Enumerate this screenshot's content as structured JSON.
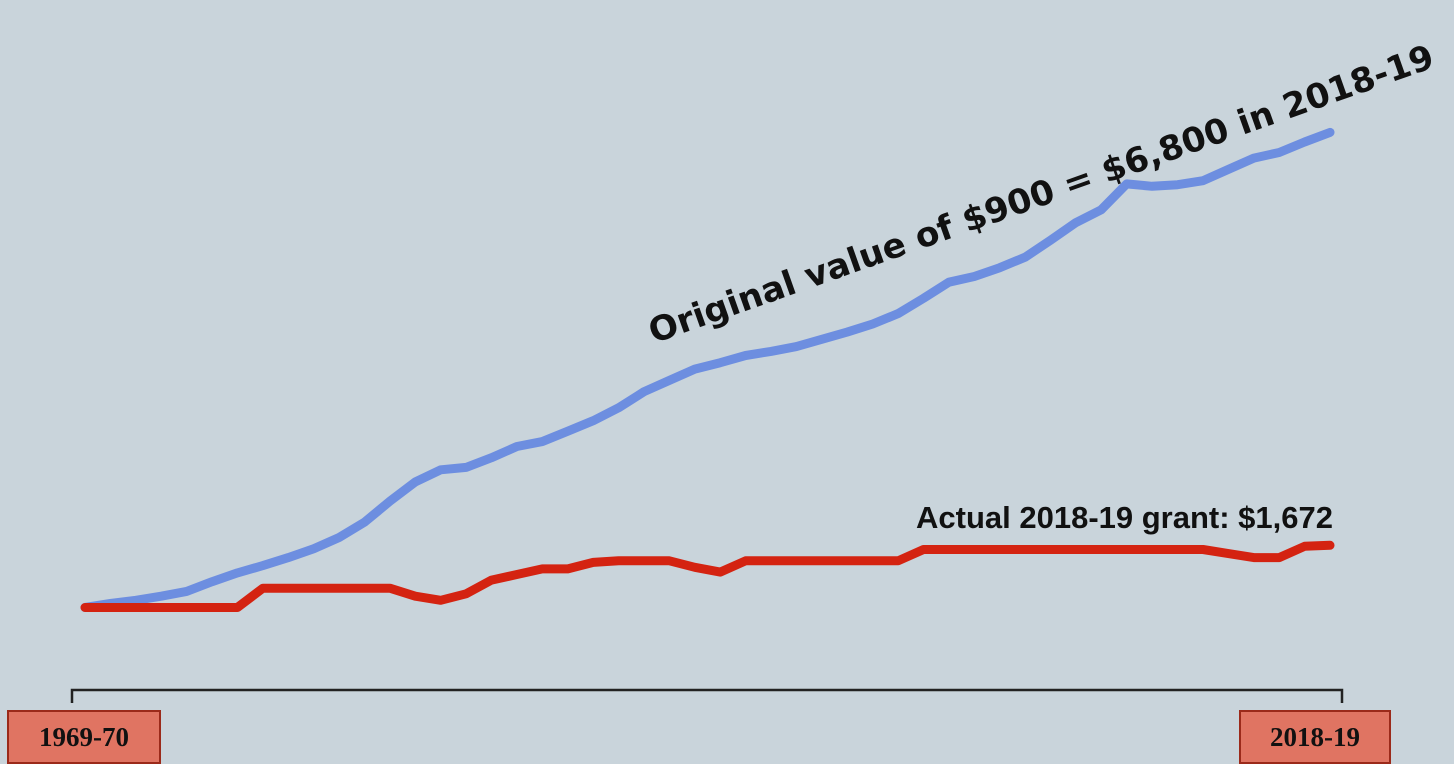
{
  "chart_data": {
    "type": "line",
    "categories": [
      "1969-70",
      null,
      null,
      null,
      null,
      null,
      null,
      null,
      null,
      null,
      null,
      null,
      null,
      null,
      null,
      null,
      null,
      null,
      null,
      null,
      null,
      null,
      null,
      null,
      null,
      null,
      null,
      null,
      null,
      null,
      null,
      null,
      null,
      null,
      null,
      null,
      null,
      null,
      null,
      null,
      null,
      null,
      null,
      null,
      null,
      null,
      null,
      null,
      null,
      "2018-19"
    ],
    "series": [
      {
        "color": "#6d8ee0",
        "values": [
          900,
          950,
          990,
          1040,
          1100,
          1220,
          1330,
          1420,
          1520,
          1630,
          1770,
          1960,
          2220,
          2460,
          2610,
          2640,
          2760,
          2900,
          2960,
          3090,
          3220,
          3380,
          3580,
          3720,
          3860,
          3940,
          4030,
          4080,
          4140,
          4230,
          4320,
          4420,
          4550,
          4740,
          4940,
          5010,
          5120,
          5250,
          5460,
          5680,
          5840,
          6160,
          6130,
          6150,
          6200,
          6340,
          6480,
          6550,
          6680,
          6800
        ]
      },
      {
        "color": "#d42311",
        "values": [
          900,
          900,
          900,
          900,
          900,
          900,
          900,
          1140,
          1140,
          1140,
          1140,
          1140,
          1140,
          1040,
          990,
          1070,
          1240,
          1310,
          1380,
          1380,
          1460,
          1480,
          1480,
          1480,
          1400,
          1340,
          1480,
          1480,
          1480,
          1480,
          1480,
          1480,
          1480,
          1620,
          1620,
          1620,
          1620,
          1620,
          1620,
          1620,
          1620,
          1620,
          1620,
          1620,
          1620,
          1570,
          1520,
          1520,
          1660,
          1672
        ]
      }
    ],
    "ylim": [
      0,
      7500
    ],
    "annotations": [
      "Original value of $900 = $6,800 in 2018-19",
      "Actual 2018-19 grant: $1,672"
    ]
  }
}
